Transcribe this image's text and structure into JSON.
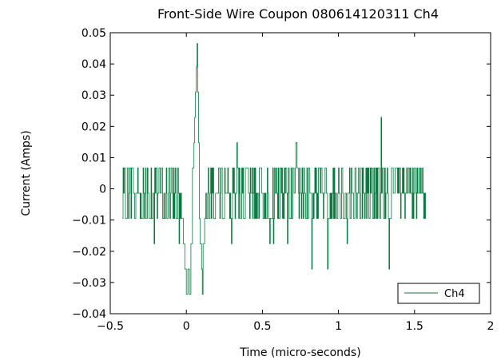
{
  "chart_data": {
    "type": "line",
    "title": "Front-Side Wire Coupon 080614120311 Ch4",
    "xlabel": "Time (micro-seconds)",
    "ylabel": "Current (Amps)",
    "xlim": [
      -0.5,
      2
    ],
    "ylim": [
      -0.04,
      0.05
    ],
    "x_ticks": [
      -0.5,
      0,
      0.5,
      1,
      1.5,
      2
    ],
    "x_tick_labels": [
      "−0.5",
      "0",
      "0.5",
      "1",
      "1.5",
      "2"
    ],
    "y_ticks": [
      -0.04,
      -0.03,
      -0.02,
      -0.01,
      0,
      0.01,
      0.02,
      0.03,
      0.04,
      0.05
    ],
    "y_tick_labels": [
      "−0.04",
      "−0.03",
      "−0.02",
      "−0.01",
      "0",
      "0.01",
      "0.02",
      "0.03",
      "0.04",
      "0.05"
    ],
    "grid": false,
    "legend_position": "bottom-right",
    "series": [
      {
        "name": "Ch4",
        "color": "#0b7a40",
        "levels": [
          -0.0095,
          -0.0014,
          0.0067
        ],
        "outlier_levels": [
          -0.0176,
          -0.0257,
          -0.0338,
          0.0148,
          0.0229
        ],
        "x_range": [
          -0.42,
          1.58
        ],
        "sample_step": 0.004,
        "peak_points": [
          {
            "x": -0.02,
            "y": -0.0176
          },
          {
            "x": -0.01,
            "y": -0.0257
          },
          {
            "x": 0.0,
            "y": -0.0338
          },
          {
            "x": 0.01,
            "y": -0.0257
          },
          {
            "x": 0.02,
            "y": -0.0338
          },
          {
            "x": 0.03,
            "y": -0.0176
          },
          {
            "x": 0.04,
            "y": 0.0067
          },
          {
            "x": 0.05,
            "y": 0.0148
          },
          {
            "x": 0.055,
            "y": 0.0229
          },
          {
            "x": 0.06,
            "y": 0.031
          },
          {
            "x": 0.065,
            "y": 0.039
          },
          {
            "x": 0.07,
            "y": 0.0465
          },
          {
            "x": 0.075,
            "y": 0.031
          },
          {
            "x": 0.08,
            "y": 0.0148
          },
          {
            "x": 0.085,
            "y": -0.0095
          },
          {
            "x": 0.09,
            "y": -0.0176
          },
          {
            "x": 0.1,
            "y": -0.0257
          },
          {
            "x": 0.105,
            "y": -0.0338
          },
          {
            "x": 0.11,
            "y": -0.0176
          },
          {
            "x": 0.12,
            "y": -0.0095
          }
        ]
      }
    ]
  }
}
